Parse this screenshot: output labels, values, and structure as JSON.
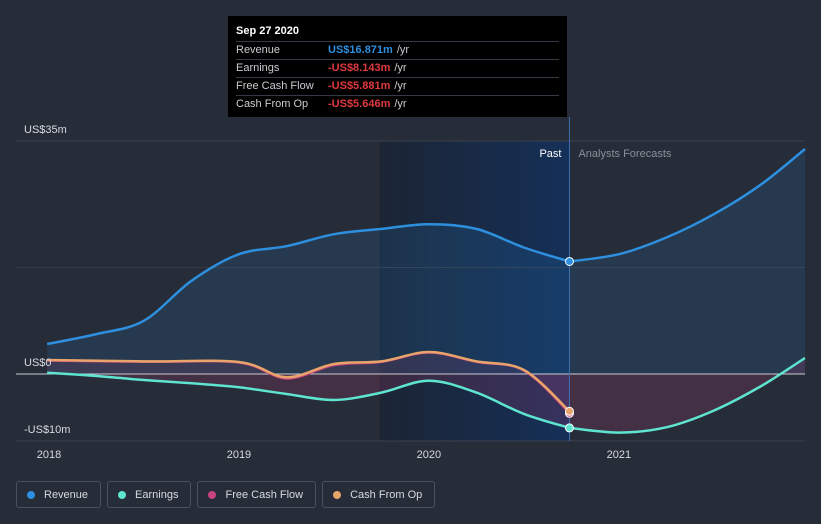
{
  "tooltip": {
    "date": "Sep 27 2020",
    "rows": [
      {
        "label": "Revenue",
        "value": "US$16.871m",
        "unit": "/yr",
        "color": "#2d8fdd"
      },
      {
        "label": "Earnings",
        "value": "-US$8.143m",
        "unit": "/yr",
        "color": "#e0393e"
      },
      {
        "label": "Free Cash Flow",
        "value": "-US$5.881m",
        "unit": "/yr",
        "color": "#e0393e"
      },
      {
        "label": "Cash From Op",
        "value": "-US$5.646m",
        "unit": "/yr",
        "color": "#e0393e"
      }
    ]
  },
  "legend": [
    {
      "label": "Revenue",
      "color": "#2d8fdd"
    },
    {
      "label": "Earnings",
      "color": "#5ee4cf"
    },
    {
      "label": "Free Cash Flow",
      "color": "#c8437f"
    },
    {
      "label": "Cash From Op",
      "color": "#e8a46a"
    }
  ],
  "chart_data": {
    "type": "line",
    "y_labels": [
      "US$35m",
      "US$0",
      "-US$10m"
    ],
    "ylim": [
      -10,
      35
    ],
    "x_ticks": [
      {
        "label": "2018",
        "x": 2018.0
      },
      {
        "label": "2019",
        "x": 2019.0
      },
      {
        "label": "2020",
        "x": 2020.0
      },
      {
        "label": "2021",
        "x": 2021.0
      }
    ],
    "xlim": [
      2018.0,
      2021.98
    ],
    "past_label": "Past",
    "forecast_label": "Analysts Forecasts",
    "split_x": 2020.74,
    "highlight_start_x": 2019.74,
    "series": [
      {
        "name": "Revenue",
        "color": "#2d8fdd",
        "points": [
          [
            2017.99,
            4.5
          ],
          [
            2018.25,
            6
          ],
          [
            2018.5,
            8
          ],
          [
            2018.75,
            14
          ],
          [
            2019.0,
            18
          ],
          [
            2019.25,
            19.2
          ],
          [
            2019.5,
            21
          ],
          [
            2019.75,
            21.8
          ],
          [
            2020.0,
            22.5
          ],
          [
            2020.25,
            21.8
          ],
          [
            2020.5,
            19
          ],
          [
            2020.74,
            16.9
          ]
        ],
        "forecast": [
          [
            2020.74,
            16.9
          ],
          [
            2021.0,
            18
          ],
          [
            2021.25,
            20.5
          ],
          [
            2021.5,
            24
          ],
          [
            2021.75,
            28.5
          ],
          [
            2021.98,
            33.8
          ]
        ]
      },
      {
        "name": "Earnings",
        "color": "#5ee4cf",
        "points": [
          [
            2017.99,
            0.2
          ],
          [
            2018.25,
            -0.3
          ],
          [
            2018.5,
            -0.9
          ],
          [
            2018.75,
            -1.4
          ],
          [
            2019.0,
            -2.0
          ],
          [
            2019.25,
            -3.0
          ],
          [
            2019.5,
            -3.9
          ],
          [
            2019.75,
            -2.8
          ],
          [
            2020.0,
            -1.0
          ],
          [
            2020.25,
            -2.8
          ],
          [
            2020.5,
            -6.0
          ],
          [
            2020.74,
            -8.1
          ]
        ],
        "forecast": [
          [
            2020.74,
            -8.1
          ],
          [
            2021.0,
            -8.8
          ],
          [
            2021.25,
            -8.0
          ],
          [
            2021.5,
            -5.5
          ],
          [
            2021.75,
            -1.8
          ],
          [
            2021.98,
            2.4
          ]
        ]
      },
      {
        "name": "Free Cash Flow",
        "color": "#c8437f",
        "points": [
          [
            2017.99,
            2.0
          ],
          [
            2018.5,
            1.8
          ],
          [
            2019.0,
            1.7
          ],
          [
            2019.25,
            -0.7
          ],
          [
            2019.5,
            1.3
          ],
          [
            2019.75,
            1.8
          ],
          [
            2020.0,
            3.2
          ],
          [
            2020.25,
            1.8
          ],
          [
            2020.5,
            0.5
          ],
          [
            2020.74,
            -5.9
          ]
        ]
      },
      {
        "name": "Cash From Op",
        "color": "#e8a46a",
        "points": [
          [
            2017.99,
            2.1
          ],
          [
            2018.5,
            1.9
          ],
          [
            2019.0,
            1.8
          ],
          [
            2019.25,
            -0.5
          ],
          [
            2019.5,
            1.5
          ],
          [
            2019.75,
            1.9
          ],
          [
            2020.0,
            3.3
          ],
          [
            2020.25,
            1.9
          ],
          [
            2020.5,
            0.6
          ],
          [
            2020.74,
            -5.6
          ]
        ]
      }
    ]
  }
}
